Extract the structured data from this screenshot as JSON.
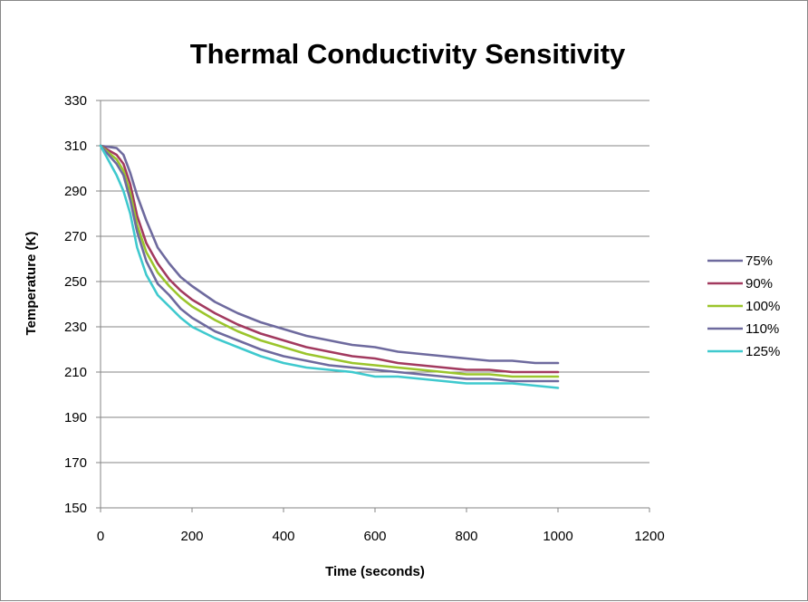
{
  "chart_data": {
    "type": "line",
    "title": "Thermal Conductivity Sensitivity",
    "xlabel": "Time (seconds)",
    "ylabel": "Temperature (K)",
    "xlim": [
      0,
      1200
    ],
    "ylim": [
      150,
      330
    ],
    "x_ticks": [
      "0",
      "200",
      "400",
      "600",
      "800",
      "1000",
      "1200"
    ],
    "y_ticks": [
      "150",
      "170",
      "190",
      "210",
      "230",
      "250",
      "270",
      "290",
      "310",
      "330"
    ],
    "grid": "horizontal",
    "legend_position": "right",
    "series": [
      {
        "name": "75%",
        "color": "#6E6A9E",
        "points": [
          [
            0,
            310
          ],
          [
            35,
            309
          ],
          [
            50,
            306
          ],
          [
            65,
            298
          ],
          [
            80,
            288
          ],
          [
            100,
            277
          ],
          [
            125,
            265
          ],
          [
            150,
            258
          ],
          [
            175,
            252
          ],
          [
            200,
            248
          ],
          [
            250,
            241
          ],
          [
            300,
            236
          ],
          [
            350,
            232
          ],
          [
            400,
            229
          ],
          [
            450,
            226
          ],
          [
            500,
            224
          ],
          [
            550,
            222
          ],
          [
            600,
            221
          ],
          [
            650,
            219
          ],
          [
            700,
            218
          ],
          [
            750,
            217
          ],
          [
            800,
            216
          ],
          [
            850,
            215
          ],
          [
            900,
            215
          ],
          [
            950,
            214
          ],
          [
            1000,
            214
          ]
        ]
      },
      {
        "name": "90%",
        "color": "#A23A5F",
        "points": [
          [
            0,
            310
          ],
          [
            35,
            306
          ],
          [
            50,
            302
          ],
          [
            65,
            293
          ],
          [
            80,
            279
          ],
          [
            100,
            267
          ],
          [
            125,
            258
          ],
          [
            150,
            251
          ],
          [
            175,
            246
          ],
          [
            200,
            242
          ],
          [
            250,
            236
          ],
          [
            300,
            231
          ],
          [
            350,
            227
          ],
          [
            400,
            224
          ],
          [
            450,
            221
          ],
          [
            500,
            219
          ],
          [
            550,
            217
          ],
          [
            600,
            216
          ],
          [
            650,
            214
          ],
          [
            700,
            213
          ],
          [
            750,
            212
          ],
          [
            800,
            211
          ],
          [
            850,
            211
          ],
          [
            900,
            210
          ],
          [
            950,
            210
          ],
          [
            1000,
            210
          ]
        ]
      },
      {
        "name": "100%",
        "color": "#9BC52C",
        "points": [
          [
            0,
            310
          ],
          [
            35,
            304
          ],
          [
            50,
            299
          ],
          [
            65,
            289
          ],
          [
            80,
            275
          ],
          [
            100,
            263
          ],
          [
            125,
            254
          ],
          [
            150,
            248
          ],
          [
            175,
            243
          ],
          [
            200,
            239
          ],
          [
            250,
            233
          ],
          [
            300,
            228
          ],
          [
            350,
            224
          ],
          [
            400,
            221
          ],
          [
            450,
            218
          ],
          [
            500,
            216
          ],
          [
            550,
            214
          ],
          [
            600,
            213
          ],
          [
            650,
            212
          ],
          [
            700,
            211
          ],
          [
            750,
            210
          ],
          [
            800,
            209
          ],
          [
            850,
            209
          ],
          [
            900,
            208
          ],
          [
            950,
            208
          ],
          [
            1000,
            208
          ]
        ]
      },
      {
        "name": "110%",
        "color": "#6E6A9E",
        "points": [
          [
            0,
            310
          ],
          [
            35,
            302
          ],
          [
            50,
            297
          ],
          [
            65,
            286
          ],
          [
            80,
            272
          ],
          [
            100,
            259
          ],
          [
            125,
            249
          ],
          [
            150,
            244
          ],
          [
            175,
            238
          ],
          [
            200,
            234
          ],
          [
            250,
            228
          ],
          [
            300,
            224
          ],
          [
            350,
            220
          ],
          [
            400,
            217
          ],
          [
            450,
            215
          ],
          [
            500,
            213
          ],
          [
            550,
            212
          ],
          [
            600,
            211
          ],
          [
            650,
            210
          ],
          [
            700,
            209
          ],
          [
            750,
            208
          ],
          [
            800,
            207
          ],
          [
            850,
            207
          ],
          [
            900,
            206
          ],
          [
            950,
            206
          ],
          [
            1000,
            206
          ]
        ]
      },
      {
        "name": "125%",
        "color": "#3FC9CE",
        "points": [
          [
            0,
            310
          ],
          [
            35,
            297
          ],
          [
            50,
            290
          ],
          [
            65,
            280
          ],
          [
            80,
            265
          ],
          [
            100,
            253
          ],
          [
            125,
            244
          ],
          [
            150,
            239
          ],
          [
            175,
            234
          ],
          [
            200,
            230
          ],
          [
            250,
            225
          ],
          [
            300,
            221
          ],
          [
            350,
            217
          ],
          [
            400,
            214
          ],
          [
            450,
            212
          ],
          [
            500,
            211
          ],
          [
            550,
            210
          ],
          [
            600,
            208
          ],
          [
            650,
            208
          ],
          [
            700,
            207
          ],
          [
            750,
            206
          ],
          [
            800,
            205
          ],
          [
            850,
            205
          ],
          [
            900,
            205
          ],
          [
            950,
            204
          ],
          [
            1000,
            203
          ]
        ]
      }
    ]
  }
}
